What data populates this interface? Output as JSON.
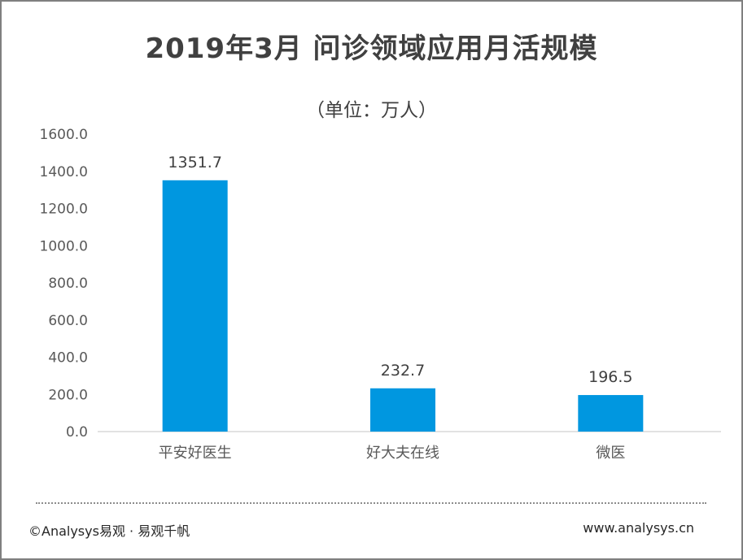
{
  "chart_data": {
    "type": "bar",
    "title": "2019年3月 问诊领域应用月活规模",
    "subtitle": "（单位：万人）",
    "categories": [
      "平安好医生",
      "好大夫在线",
      "微医"
    ],
    "values": [
      1351.7,
      232.7,
      196.5
    ],
    "data_labels": [
      "1351.7",
      "232.7",
      "196.5"
    ],
    "ylim": [
      0,
      1600
    ],
    "yticks": [
      0,
      200,
      400,
      600,
      800,
      1000,
      1200,
      1400,
      1600
    ],
    "ytick_labels": [
      "0.0",
      "200.0",
      "400.0",
      "600.0",
      "800.0",
      "1000.0",
      "1200.0",
      "1400.0",
      "1600.0"
    ],
    "grid": false,
    "bar_color": "#0097e0"
  },
  "footer": {
    "copyright": "©Analysys易观 · 易观千帆",
    "website": "www.analysys.cn"
  }
}
